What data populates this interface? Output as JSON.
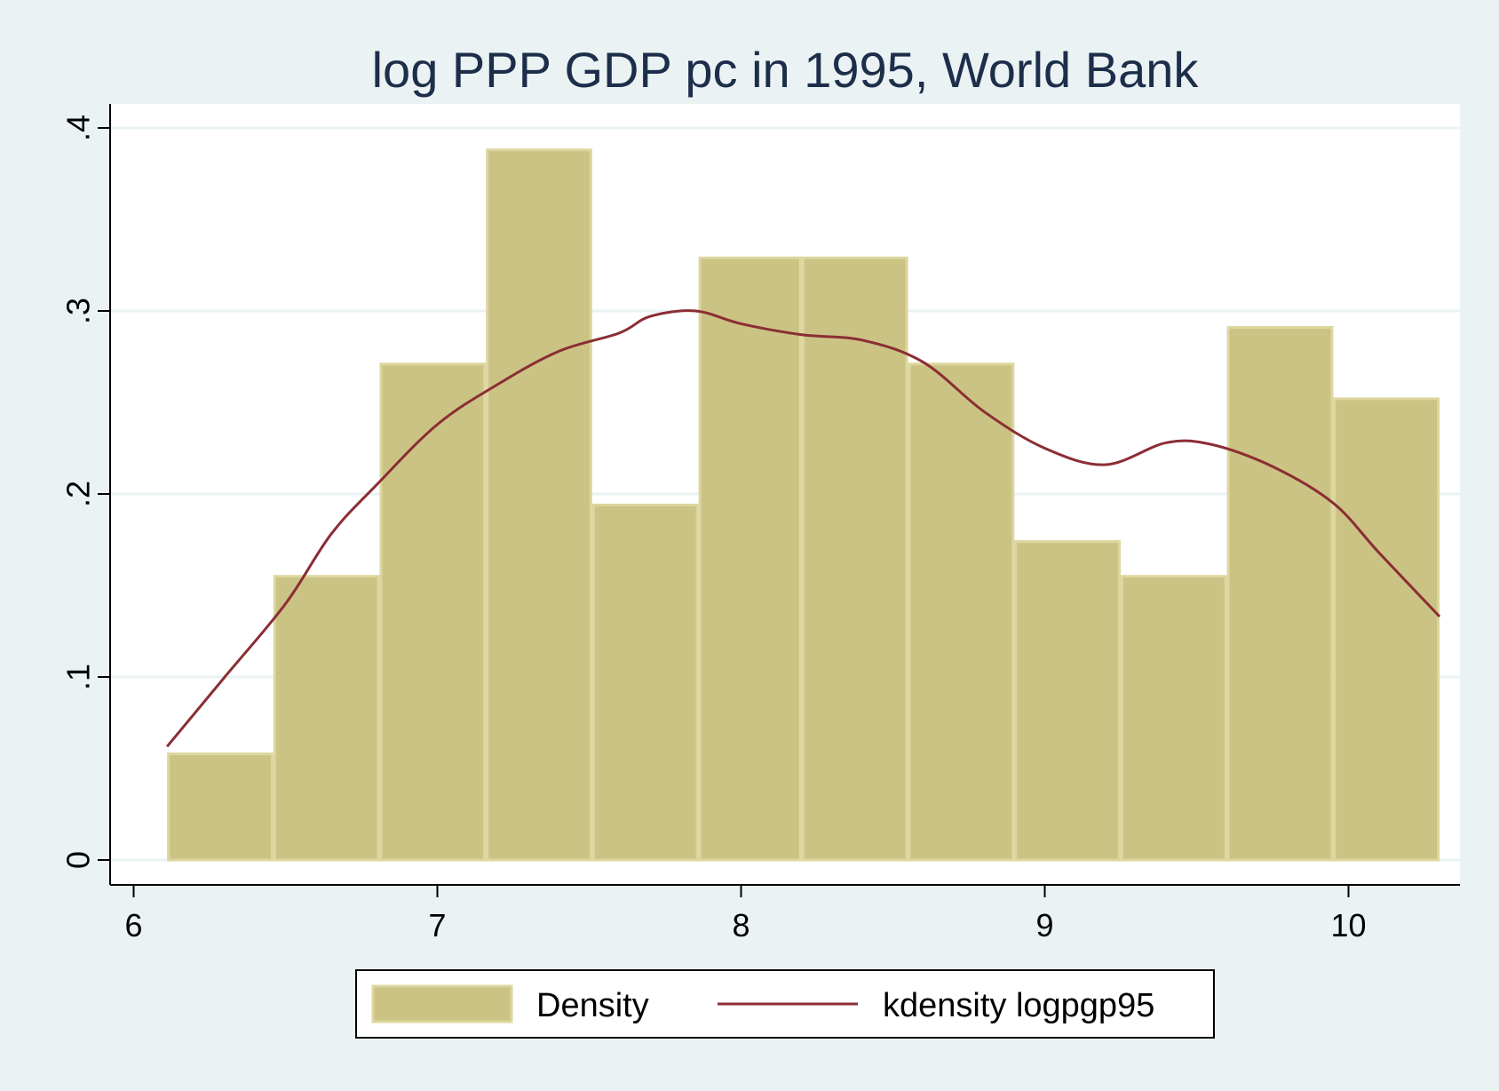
{
  "chart_data": {
    "type": "bar",
    "title": "log PPP GDP pc in 1995, World Bank",
    "xlim": [
      6,
      10.35
    ],
    "ylim": [
      0,
      0.4
    ],
    "x_ticks": [
      {
        "value": 6,
        "label": "6"
      },
      {
        "value": 7,
        "label": "7"
      },
      {
        "value": 8,
        "label": "8"
      },
      {
        "value": 9,
        "label": "9"
      },
      {
        "value": 10,
        "label": "10"
      }
    ],
    "y_ticks": [
      {
        "value": 0,
        "label": "0"
      },
      {
        "value": 0.1,
        "label": ".1"
      },
      {
        "value": 0.2,
        "label": ".2"
      },
      {
        "value": 0.3,
        "label": ".3"
      },
      {
        "value": 0.4,
        "label": ".4"
      }
    ],
    "grid": true,
    "legend_position": "bottom",
    "histogram": {
      "name": "Density",
      "bin_edges": [
        6.11,
        6.46,
        6.81,
        7.16,
        7.51,
        7.86,
        8.2,
        8.55,
        8.9,
        9.25,
        9.6,
        9.95,
        10.3
      ],
      "values": [
        0.058,
        0.155,
        0.271,
        0.388,
        0.194,
        0.329,
        0.329,
        0.271,
        0.174,
        0.155,
        0.291,
        0.252
      ]
    },
    "kdensity": {
      "name": "kdensity logpgp95",
      "x": [
        6.11,
        6.3,
        6.5,
        6.65,
        6.8,
        7.0,
        7.2,
        7.4,
        7.6,
        7.7,
        7.85,
        8.0,
        8.2,
        8.4,
        8.6,
        8.8,
        9.0,
        9.2,
        9.4,
        9.55,
        9.75,
        9.95,
        10.1,
        10.3
      ],
      "y": [
        0.062,
        0.1,
        0.14,
        0.178,
        0.205,
        0.238,
        0.26,
        0.278,
        0.288,
        0.297,
        0.3,
        0.293,
        0.287,
        0.284,
        0.272,
        0.245,
        0.225,
        0.216,
        0.228,
        0.227,
        0.215,
        0.195,
        0.168,
        0.133
      ]
    },
    "colors": {
      "bar_fill": "#cbc384",
      "bar_stroke": "#ddd69f",
      "line": "#8b2e34",
      "plot_bg": "#ffffff",
      "outer_bg": "#eaf2f3",
      "grid": "#eaf2f3"
    }
  }
}
